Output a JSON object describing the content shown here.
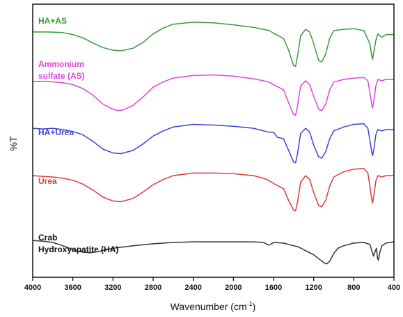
{
  "chart_data": {
    "type": "line",
    "xlabel": "Wavenumber (cm",
    "xlabel_sup": "-1",
    "xlabel_tail": ")",
    "ylabel": "%T",
    "xlim": [
      4000,
      400
    ],
    "x_reversed": true,
    "grid": false,
    "legend": "none",
    "x_ticks": [
      4000,
      3600,
      3200,
      2800,
      2400,
      2000,
      1600,
      1200,
      800,
      400
    ],
    "series": [
      {
        "name": "HA+AS",
        "label_lines": [
          "HA+AS"
        ],
        "color": "#3a9b3a",
        "offset": 4,
        "points": [
          [
            4000,
            58
          ],
          [
            3850,
            58
          ],
          [
            3700,
            57
          ],
          [
            3600,
            54
          ],
          [
            3500,
            49
          ],
          [
            3400,
            41
          ],
          [
            3300,
            34
          ],
          [
            3200,
            30
          ],
          [
            3120,
            29
          ],
          [
            3000,
            33
          ],
          [
            2900,
            42
          ],
          [
            2800,
            55
          ],
          [
            2700,
            64
          ],
          [
            2600,
            70
          ],
          [
            2400,
            73
          ],
          [
            2200,
            72
          ],
          [
            2000,
            69
          ],
          [
            1800,
            65
          ],
          [
            1700,
            62
          ],
          [
            1640,
            60
          ],
          [
            1600,
            56
          ],
          [
            1500,
            48
          ],
          [
            1450,
            30
          ],
          [
            1400,
            6
          ],
          [
            1380,
            5
          ],
          [
            1360,
            22
          ],
          [
            1330,
            52
          ],
          [
            1280,
            62
          ],
          [
            1240,
            58
          ],
          [
            1200,
            40
          ],
          [
            1150,
            14
          ],
          [
            1120,
            12
          ],
          [
            1080,
            24
          ],
          [
            1040,
            48
          ],
          [
            1000,
            60
          ],
          [
            900,
            62
          ],
          [
            800,
            63
          ],
          [
            700,
            60
          ],
          [
            640,
            40
          ],
          [
            620,
            20
          ],
          [
            613,
            16
          ],
          [
            600,
            28
          ],
          [
            580,
            45
          ],
          [
            560,
            55
          ],
          [
            520,
            50
          ],
          [
            480,
            54
          ],
          [
            400,
            54
          ]
        ]
      },
      {
        "name": "Ammonium sulfate (AS)",
        "label_lines": [
          "Ammonium",
          "sulfate (AS)"
        ],
        "color": "#dd44dd",
        "offset": 3,
        "points": [
          [
            4000,
            57
          ],
          [
            3850,
            57
          ],
          [
            3700,
            55
          ],
          [
            3600,
            52
          ],
          [
            3500,
            46
          ],
          [
            3400,
            36
          ],
          [
            3300,
            22
          ],
          [
            3200,
            14
          ],
          [
            3150,
            12
          ],
          [
            3100,
            13
          ],
          [
            3000,
            20
          ],
          [
            2900,
            33
          ],
          [
            2800,
            48
          ],
          [
            2700,
            56
          ],
          [
            2600,
            62
          ],
          [
            2400,
            66
          ],
          [
            2200,
            67
          ],
          [
            2000,
            65
          ],
          [
            1800,
            61
          ],
          [
            1700,
            58
          ],
          [
            1650,
            56
          ],
          [
            1600,
            52
          ],
          [
            1500,
            44
          ],
          [
            1450,
            24
          ],
          [
            1400,
            6
          ],
          [
            1380,
            5
          ],
          [
            1360,
            20
          ],
          [
            1330,
            50
          ],
          [
            1280,
            58
          ],
          [
            1240,
            52
          ],
          [
            1200,
            34
          ],
          [
            1150,
            14
          ],
          [
            1120,
            12
          ],
          [
            1080,
            22
          ],
          [
            1040,
            44
          ],
          [
            1000,
            56
          ],
          [
            900,
            60
          ],
          [
            800,
            62
          ],
          [
            700,
            63
          ],
          [
            660,
            58
          ],
          [
            640,
            40
          ],
          [
            620,
            20
          ],
          [
            613,
            16
          ],
          [
            600,
            28
          ],
          [
            580,
            50
          ],
          [
            560,
            60
          ],
          [
            520,
            58
          ],
          [
            480,
            60
          ],
          [
            400,
            60
          ]
        ]
      },
      {
        "name": "HA+Urea",
        "label_lines": [
          "HA+Urea"
        ],
        "color": "#3a44dd",
        "offset": 2,
        "points": [
          [
            4000,
            62
          ],
          [
            3900,
            61
          ],
          [
            3800,
            62
          ],
          [
            3700,
            60
          ],
          [
            3600,
            57
          ],
          [
            3500,
            52
          ],
          [
            3400,
            42
          ],
          [
            3300,
            30
          ],
          [
            3200,
            24
          ],
          [
            3120,
            23
          ],
          [
            3000,
            28
          ],
          [
            2900,
            38
          ],
          [
            2800,
            50
          ],
          [
            2700,
            58
          ],
          [
            2600,
            64
          ],
          [
            2400,
            68
          ],
          [
            2200,
            67
          ],
          [
            2000,
            65
          ],
          [
            1800,
            62
          ],
          [
            1700,
            58
          ],
          [
            1650,
            56
          ],
          [
            1600,
            56
          ],
          [
            1560,
            48
          ],
          [
            1500,
            46
          ],
          [
            1450,
            28
          ],
          [
            1400,
            10
          ],
          [
            1380,
            9
          ],
          [
            1360,
            24
          ],
          [
            1330,
            54
          ],
          [
            1280,
            62
          ],
          [
            1240,
            56
          ],
          [
            1200,
            36
          ],
          [
            1150,
            18
          ],
          [
            1120,
            16
          ],
          [
            1080,
            26
          ],
          [
            1040,
            46
          ],
          [
            1000,
            58
          ],
          [
            900,
            64
          ],
          [
            800,
            68
          ],
          [
            700,
            69
          ],
          [
            660,
            62
          ],
          [
            640,
            44
          ],
          [
            620,
            24
          ],
          [
            613,
            20
          ],
          [
            600,
            30
          ],
          [
            580,
            52
          ],
          [
            560,
            60
          ],
          [
            520,
            58
          ],
          [
            480,
            60
          ],
          [
            400,
            60
          ]
        ]
      },
      {
        "name": "Urea",
        "label_lines": [
          "Urea"
        ],
        "color": "#e03a3a",
        "offset": 1,
        "points": [
          [
            4000,
            62
          ],
          [
            3900,
            61
          ],
          [
            3800,
            60
          ],
          [
            3700,
            58
          ],
          [
            3600,
            55
          ],
          [
            3500,
            49
          ],
          [
            3400,
            40
          ],
          [
            3300,
            29
          ],
          [
            3200,
            23
          ],
          [
            3120,
            22
          ],
          [
            3000,
            27
          ],
          [
            2900,
            37
          ],
          [
            2800,
            48
          ],
          [
            2700,
            56
          ],
          [
            2600,
            62
          ],
          [
            2400,
            66
          ],
          [
            2200,
            66
          ],
          [
            2000,
            65
          ],
          [
            1800,
            62
          ],
          [
            1700,
            58
          ],
          [
            1650,
            55
          ],
          [
            1600,
            50
          ],
          [
            1500,
            42
          ],
          [
            1450,
            24
          ],
          [
            1400,
            9
          ],
          [
            1380,
            8
          ],
          [
            1360,
            22
          ],
          [
            1330,
            52
          ],
          [
            1280,
            62
          ],
          [
            1240,
            56
          ],
          [
            1200,
            36
          ],
          [
            1150,
            16
          ],
          [
            1120,
            14
          ],
          [
            1080,
            24
          ],
          [
            1040,
            46
          ],
          [
            1000,
            60
          ],
          [
            900,
            68
          ],
          [
            800,
            72
          ],
          [
            700,
            73
          ],
          [
            660,
            66
          ],
          [
            640,
            46
          ],
          [
            620,
            24
          ],
          [
            613,
            20
          ],
          [
            600,
            32
          ],
          [
            580,
            54
          ],
          [
            560,
            62
          ],
          [
            520,
            60
          ],
          [
            480,
            62
          ],
          [
            400,
            62
          ]
        ]
      },
      {
        "name": "Crab Hydroxyapatite (HA)",
        "label_lines": [
          "Crab",
          "Hydroxyapatite (HA)"
        ],
        "color": "#333333",
        "offset": 0,
        "points": [
          [
            4000,
            48
          ],
          [
            3900,
            47
          ],
          [
            3800,
            45
          ],
          [
            3700,
            40
          ],
          [
            3600,
            34
          ],
          [
            3500,
            30
          ],
          [
            3430,
            29
          ],
          [
            3350,
            31
          ],
          [
            3200,
            36
          ],
          [
            3000,
            40
          ],
          [
            2800,
            43
          ],
          [
            2600,
            45
          ],
          [
            2400,
            46
          ],
          [
            2200,
            46
          ],
          [
            2000,
            46
          ],
          [
            1800,
            46
          ],
          [
            1700,
            45
          ],
          [
            1650,
            41
          ],
          [
            1630,
            42
          ],
          [
            1600,
            45
          ],
          [
            1500,
            44
          ],
          [
            1450,
            42
          ],
          [
            1400,
            40
          ],
          [
            1350,
            38
          ],
          [
            1300,
            34
          ],
          [
            1200,
            26
          ],
          [
            1150,
            20
          ],
          [
            1100,
            14
          ],
          [
            1070,
            12
          ],
          [
            1040,
            16
          ],
          [
            1000,
            28
          ],
          [
            960,
            36
          ],
          [
            900,
            40
          ],
          [
            800,
            44
          ],
          [
            700,
            45
          ],
          [
            640,
            42
          ],
          [
            620,
            32
          ],
          [
            603,
            24
          ],
          [
            590,
            30
          ],
          [
            575,
            36
          ],
          [
            563,
            20
          ],
          [
            555,
            18
          ],
          [
            540,
            30
          ],
          [
            520,
            40
          ],
          [
            480,
            44
          ],
          [
            400,
            46
          ]
        ]
      }
    ]
  }
}
